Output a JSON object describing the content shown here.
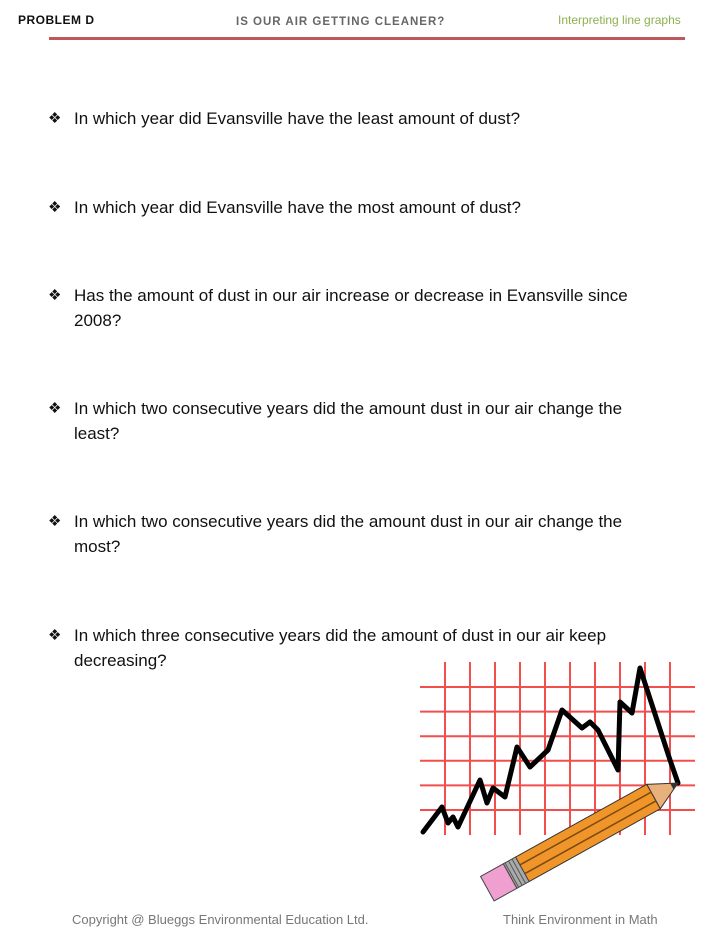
{
  "header": {
    "problem": "PROBLEM D",
    "title": "IS OUR AIR GETTING CLEANER?",
    "subtitle": "Interpreting line graphs",
    "rule_color": "#c0585a"
  },
  "bullet_icon": "four-diamond-bullet",
  "questions": [
    "In which year did Evansville have the least amount of dust?",
    "In which year did Evansville have the most amount of dust?",
    "Has the amount of dust in our air increase or decrease in Evansville since 2008?",
    "In which two consecutive years did the amount dust in our air change the least?",
    "In which two consecutive years did the amount dust in our air change the most?",
    "In which three consecutive years did the amount of dust in our air keep decreasing?"
  ],
  "illustration": "line-graph-with-pencil",
  "footer": {
    "copyright": "Copyright @ Blueggs Environmental Education Ltd.",
    "tagline": "Think Environment in Math"
  }
}
